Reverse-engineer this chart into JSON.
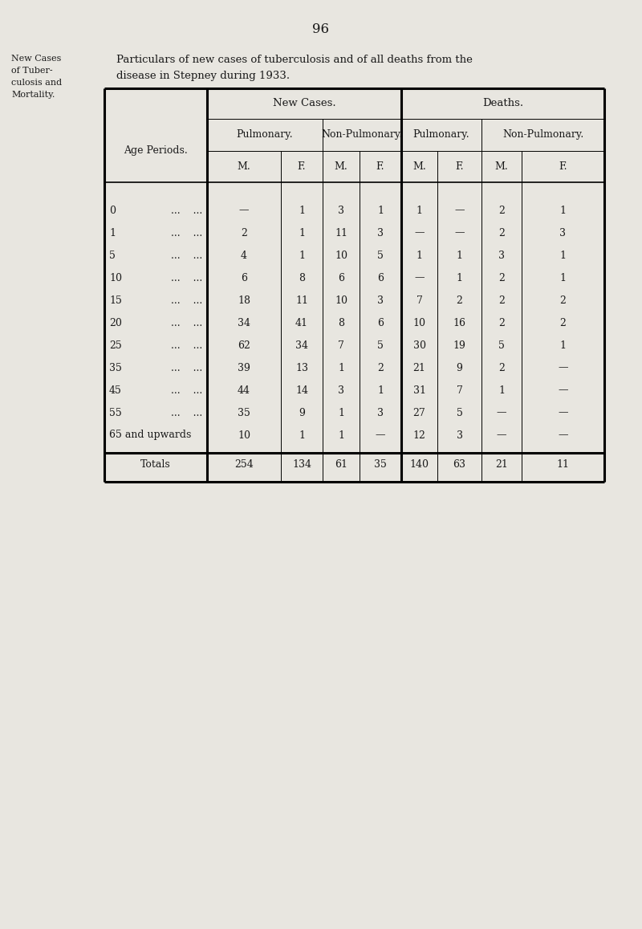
{
  "page_number": "96",
  "side_label": [
    "New Cases",
    "of Tuber-",
    "culosis and",
    "Mortality."
  ],
  "line1": "Particulars of new cases of tuberculosis and of all deaths from the",
  "line2": "disease in Stepney during 1933.",
  "col_group1": "New Cases.",
  "col_group2": "Deaths.",
  "col_sub1": "Pulmonary.",
  "col_sub2": "Non-Pulmonary.",
  "col_sub3": "Pulmonary.",
  "col_sub4": "Non-Pulmonary.",
  "col_mf": [
    "M.",
    "F.",
    "M.",
    "F.",
    "M.",
    "F.",
    "M.",
    "F."
  ],
  "age_label_col": "Age Periods.",
  "age_rows": [
    {
      "age": "0",
      "vals": [
        "—",
        "1",
        "3",
        "1",
        "1",
        "—",
        "2",
        "1"
      ]
    },
    {
      "age": "1",
      "vals": [
        "2",
        "1",
        "11",
        "3",
        "—",
        "—",
        "2",
        "3"
      ]
    },
    {
      "age": "5",
      "vals": [
        "4",
        "1",
        "10",
        "5",
        "1",
        "1",
        "3",
        "1"
      ]
    },
    {
      "age": "10",
      "vals": [
        "6",
        "8",
        "6",
        "6",
        "—",
        "1",
        "2",
        "1"
      ]
    },
    {
      "age": "15",
      "vals": [
        "18",
        "11",
        "10",
        "3",
        "7",
        "2",
        "2",
        "2"
      ]
    },
    {
      "age": "20",
      "vals": [
        "34",
        "41",
        "8",
        "6",
        "10",
        "16",
        "2",
        "2"
      ]
    },
    {
      "age": "25",
      "vals": [
        "62",
        "34",
        "7",
        "5",
        "30",
        "19",
        "5",
        "1"
      ]
    },
    {
      "age": "35",
      "vals": [
        "39",
        "13",
        "1",
        "2",
        "21",
        "9",
        "2",
        "—"
      ]
    },
    {
      "age": "45",
      "vals": [
        "44",
        "14",
        "3",
        "1",
        "31",
        "7",
        "1",
        "—"
      ]
    },
    {
      "age": "55",
      "vals": [
        "35",
        "9",
        "1",
        "3",
        "27",
        "5",
        "—",
        "—"
      ]
    },
    {
      "age": "65 and upwards",
      "vals": [
        "10",
        "1",
        "1",
        "—",
        "12",
        "3",
        "—",
        "—"
      ]
    }
  ],
  "totals_label": "Totals",
  "totals_vals": [
    "254",
    "134",
    "61",
    "35",
    "140",
    "63",
    "21",
    "11"
  ],
  "bg_color": "#e8e6e0",
  "text_color": "#1a1a1a"
}
